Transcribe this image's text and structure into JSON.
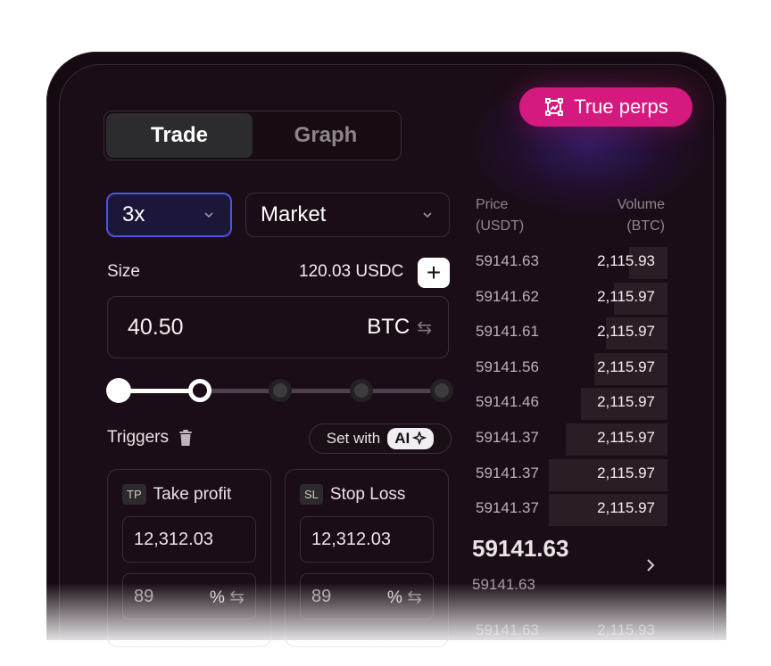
{
  "tabs": [
    {
      "label": "Trade",
      "active": true
    },
    {
      "label": "Graph",
      "active": false
    }
  ],
  "badge": {
    "label": "True perps",
    "icon": "chart-frame-icon",
    "color": "#d6197e"
  },
  "leverage": {
    "value": "3x"
  },
  "order_type": {
    "value": "Market"
  },
  "size": {
    "label": "Size",
    "balance": "120.03 USDC",
    "value": "40.50",
    "unit": "BTC"
  },
  "slider": {
    "stops": 5,
    "selected_index": 1
  },
  "triggers": {
    "label": "Triggers",
    "set_with": "Set with",
    "ai_label": "AI"
  },
  "take_profit": {
    "tag": "TP",
    "label": "Take profit",
    "price": "12,312.03",
    "percent": "89",
    "percent_unit": "%"
  },
  "stop_loss": {
    "tag": "SL",
    "label": "Stop Loss",
    "price": "12,312.03",
    "percent": "89",
    "percent_unit": "%"
  },
  "order_book": {
    "price_header": "Price",
    "price_unit": "(USDT)",
    "volume_header": "Volume",
    "volume_unit": "(BTC)",
    "rows": [
      {
        "price": "59141.63",
        "volume": "2,115.93",
        "depth": 0.2
      },
      {
        "price": "59141.62",
        "volume": "2,115.97",
        "depth": 0.28
      },
      {
        "price": "59141.61",
        "volume": "2,115.97",
        "depth": 0.32
      },
      {
        "price": "59141.56",
        "volume": "2,115.97",
        "depth": 0.38
      },
      {
        "price": "59141.46",
        "volume": "2,115.97",
        "depth": 0.45
      },
      {
        "price": "59141.37",
        "volume": "2,115.97",
        "depth": 0.53
      },
      {
        "price": "59141.37",
        "volume": "2,115.97",
        "depth": 0.62
      },
      {
        "price": "59141.37",
        "volume": "2,115.97",
        "depth": 0.62
      }
    ],
    "last_price": "59141.63",
    "mark_price": "59141.63",
    "bottom_row": {
      "price": "59141.63",
      "volume": "2,115.93"
    }
  }
}
